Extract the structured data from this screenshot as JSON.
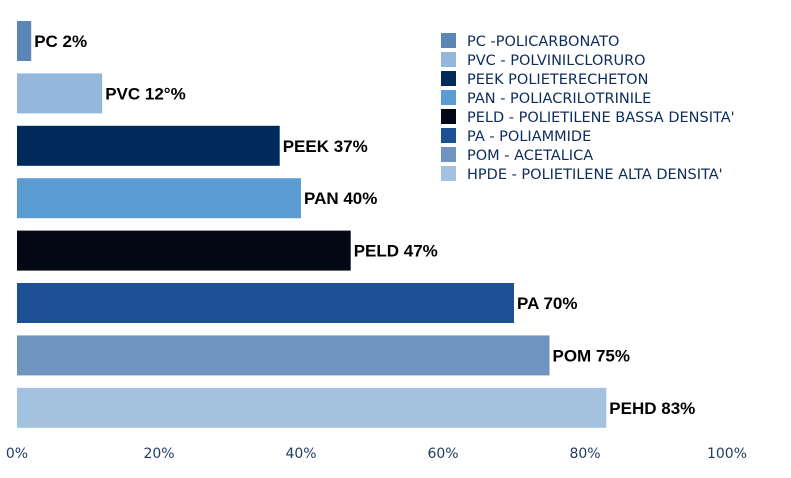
{
  "chart_data": {
    "type": "bar",
    "orientation": "horizontal",
    "xlim": [
      0,
      100
    ],
    "x_ticks": [
      "0%",
      "20%",
      "40%",
      "60%",
      "80%",
      "100%"
    ],
    "x_tick_values": [
      0,
      20,
      40,
      60,
      80,
      100
    ],
    "grid": false,
    "legend_position": "top-right",
    "bars": [
      {
        "value": 2,
        "label": "PC 2%",
        "color": "#5b87b6"
      },
      {
        "value": 12,
        "label": "PVC 12°%",
        "color": "#93b8dc"
      },
      {
        "value": 37,
        "label": "PEEK 37%",
        "color": "#002a5c"
      },
      {
        "value": 40,
        "label": "PAN 40%",
        "color": "#5a9bd2"
      },
      {
        "value": 47,
        "label": "PELD 47%",
        "color": "#020814"
      },
      {
        "value": 70,
        "label": "PA 70%",
        "color": "#1c4f93"
      },
      {
        "value": 75,
        "label": "POM 75%",
        "color": "#7094c0"
      },
      {
        "value": 83,
        "label": "PEHD 83%",
        "color": "#a3c2e0"
      }
    ],
    "legend": [
      {
        "label": "PC -POLICARBONATO",
        "color": "#5b87b6"
      },
      {
        "label": "PVC - POLVINILCLORURO",
        "color": "#93b8dc"
      },
      {
        "label": "PEEK POLIETERECHETON",
        "color": "#002a5c"
      },
      {
        "label": "PAN - POLIACRILOTRINILE",
        "color": "#5a9bd2"
      },
      {
        "label": "PELD - POLIETILENE BASSA DENSITA'",
        "color": "#020814"
      },
      {
        "label": "PA - POLIAMMIDE",
        "color": "#1c4f93"
      },
      {
        "label": "POM - ACETALICA",
        "color": "#7094c0"
      },
      {
        "label": "HPDE - POLIETILENE ALTA DENSITA'",
        "color": "#a3c2e0"
      }
    ]
  }
}
